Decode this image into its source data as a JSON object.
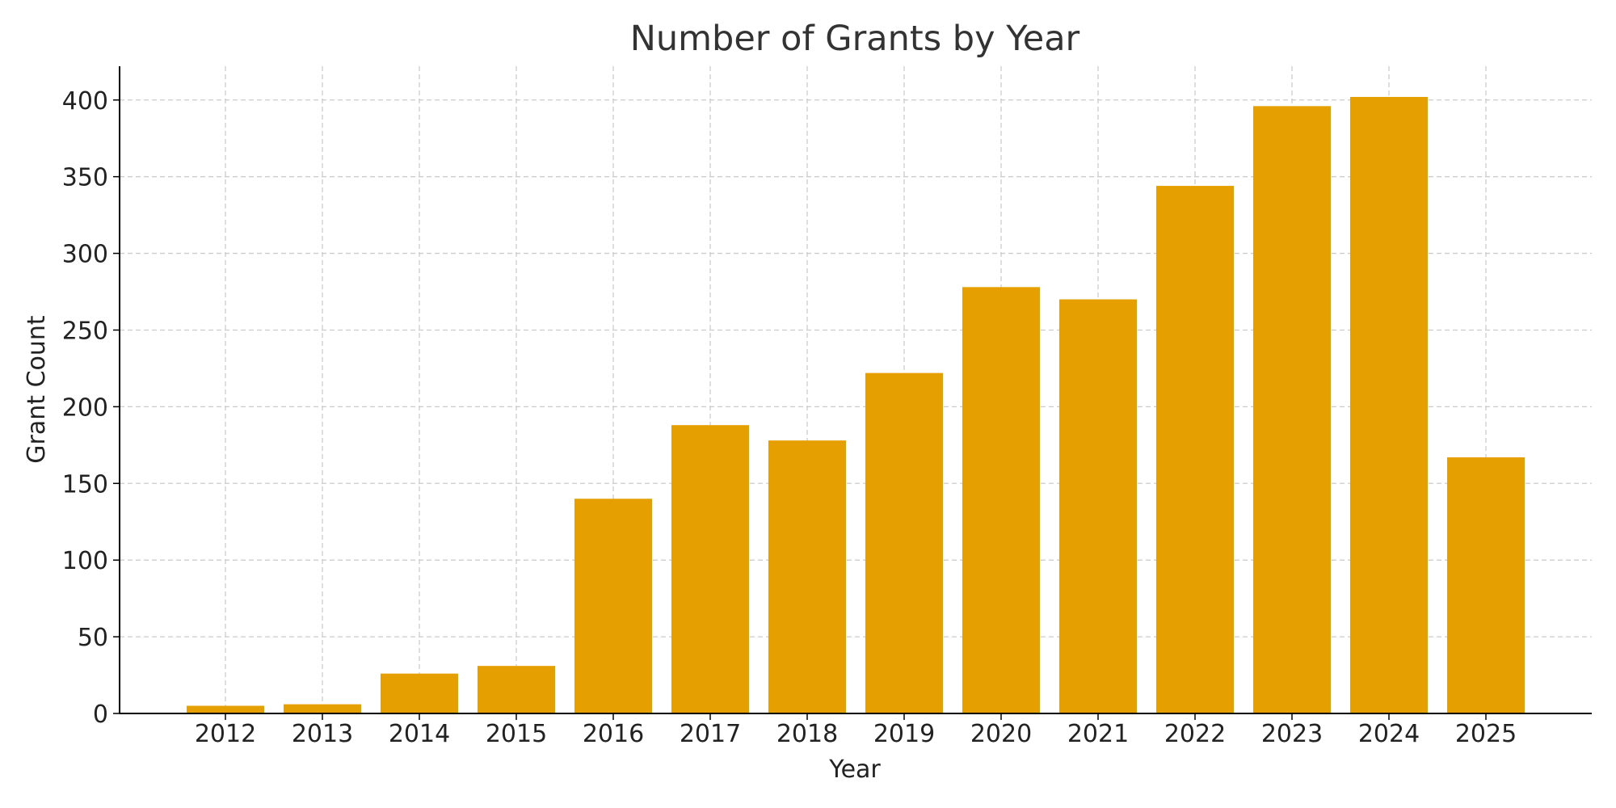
{
  "chart_data": {
    "type": "bar",
    "title": "Number of Grants by Year",
    "xlabel": "Year",
    "ylabel": "Grant Count",
    "categories": [
      "2012",
      "2013",
      "2014",
      "2015",
      "2016",
      "2017",
      "2018",
      "2019",
      "2020",
      "2021",
      "2022",
      "2023",
      "2024",
      "2025"
    ],
    "values": [
      5,
      6,
      26,
      31,
      140,
      188,
      178,
      222,
      278,
      270,
      344,
      396,
      402,
      167
    ],
    "ylim": [
      0,
      422
    ],
    "yticks": [
      0,
      50,
      100,
      150,
      200,
      250,
      300,
      350,
      400
    ],
    "grid": true,
    "bar_color": "#E69F00",
    "grid_color": "#cccccc",
    "axis_color": "#000000"
  }
}
